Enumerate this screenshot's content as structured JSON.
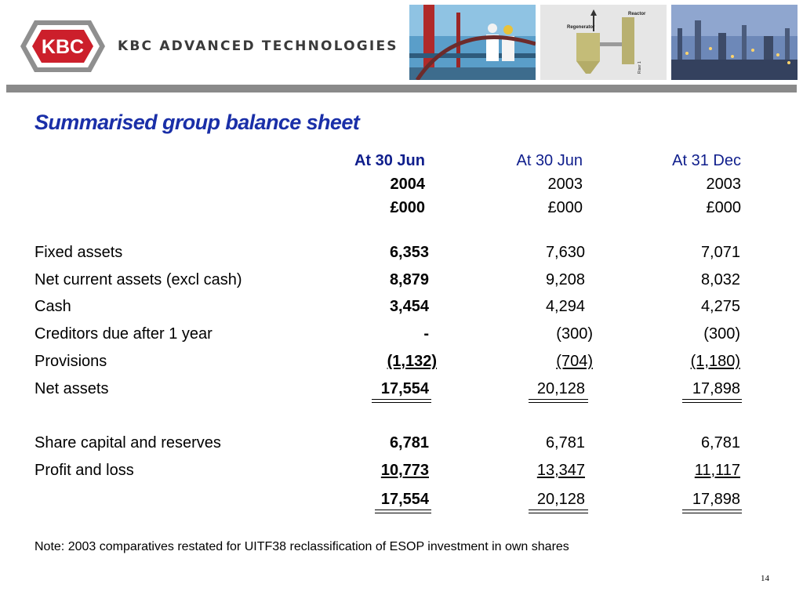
{
  "header": {
    "logo_text": "KBC",
    "company_name": "KBC ADVANCED TECHNOLOGIES",
    "diagram_labels": {
      "reactor": "Reactor",
      "regenerator": "Regenerator",
      "riser": "Riser 1"
    }
  },
  "title": "Summarised group balance sheet",
  "columns": [
    {
      "line1": "At 30 Jun",
      "line2": "2004",
      "line3": "£000"
    },
    {
      "line1": "At 30 Jun",
      "line2": "2003",
      "line3": "£000"
    },
    {
      "line1": "At 31 Dec",
      "line2": "2003",
      "line3": "£000"
    }
  ],
  "rows": [
    {
      "label": "Fixed assets",
      "values": [
        "6,353",
        "7,630",
        "7,071"
      ]
    },
    {
      "label": "Net current assets (excl cash)",
      "values": [
        "8,879",
        "9,208",
        "8,032"
      ]
    },
    {
      "label": "Cash",
      "values": [
        "3,454",
        "4,294",
        "4,275"
      ]
    },
    {
      "label": "Creditors due after 1 year",
      "values": [
        "-",
        "(300)",
        "(300)"
      ]
    },
    {
      "label": "Provisions",
      "values": [
        "(1,132)",
        "(704)",
        "(1,180)"
      ]
    },
    {
      "label": "Net assets",
      "values": [
        "17,554",
        "20,128",
        "17,898"
      ]
    },
    {
      "label": "Share capital and reserves",
      "values": [
        "6,781",
        "6,781",
        "6,781"
      ]
    },
    {
      "label": "Profit and loss",
      "values": [
        "10,773",
        "13,347",
        "11,117"
      ]
    },
    {
      "label": "",
      "values": [
        "17,554",
        "20,128",
        "17,898"
      ]
    }
  ],
  "note": "Note: 2003 comparatives restated for UITF38 reclassification of ESOP investment in own shares",
  "page_number": "14",
  "colors": {
    "title_blue": "#1a2fa8",
    "header_blue": "#0f1e8c",
    "logo_red": "#cc1f2b",
    "rule_grey": "#8a8a8a"
  }
}
